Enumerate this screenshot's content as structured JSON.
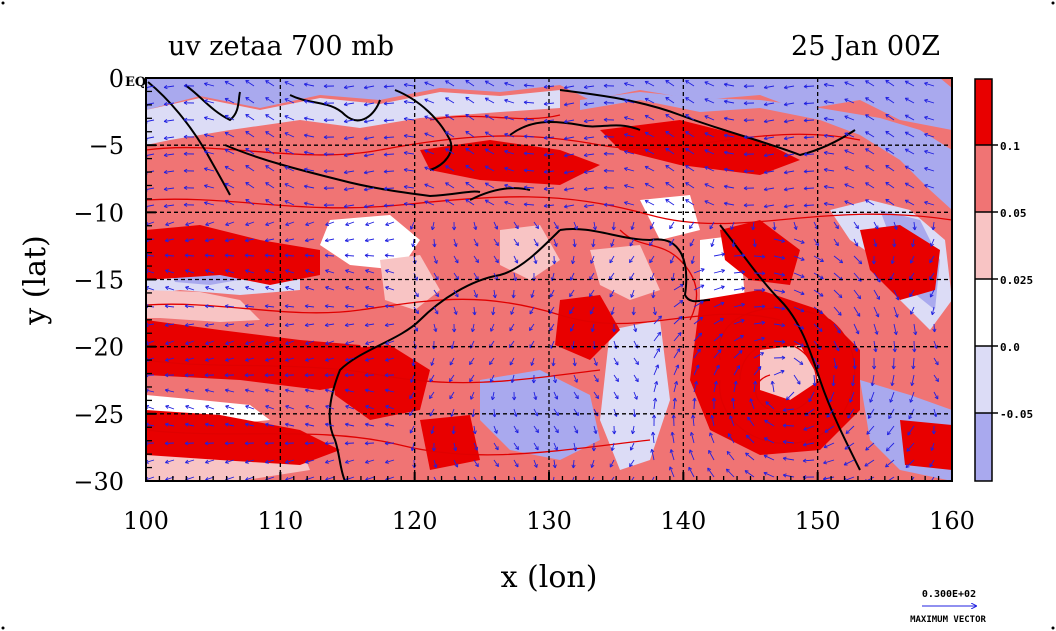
{
  "map": {
    "title_left": "uv zetaa 700 mb",
    "title_right": "25 Jan 00Z",
    "xlabel": "x (lon)",
    "ylabel": "y (lat)",
    "corner_label": "EQ",
    "lon_range": [
      100,
      160
    ],
    "lat_range": [
      -30,
      0
    ],
    "x_ticks": [
      {
        "value": 100,
        "label": "100"
      },
      {
        "value": 110,
        "label": "110"
      },
      {
        "value": 120,
        "label": "120"
      },
      {
        "value": 130,
        "label": "130"
      },
      {
        "value": 140,
        "label": "140"
      },
      {
        "value": 150,
        "label": "150"
      },
      {
        "value": 160,
        "label": "160"
      }
    ],
    "y_ticks": [
      {
        "value": 0,
        "label": "0"
      },
      {
        "value": -5,
        "label": "−5"
      },
      {
        "value": -10,
        "label": "−10"
      },
      {
        "value": -15,
        "label": "−15"
      },
      {
        "value": -20,
        "label": "−20"
      },
      {
        "value": -25,
        "label": "−25"
      },
      {
        "value": -30,
        "label": "−30"
      }
    ],
    "grid": true,
    "colors": {
      "strong_positive": "#e80000",
      "mid_positive": "#f07474",
      "weak_positive": "#f8c4c4",
      "neutral": "#ffffff",
      "weak_negative": "#dcdcf6",
      "negative": "#a9a9ee",
      "contour": "#e00000",
      "vector": "#2020e0",
      "coast": "#000000"
    }
  },
  "colorbar": {
    "labels": [
      {
        "value": 0.1,
        "label": "0.1"
      },
      {
        "value": 0.05,
        "label": "0.05"
      },
      {
        "value": 0.025,
        "label": "0.025"
      },
      {
        "value": 0.0,
        "label": "0.0"
      },
      {
        "value": -0.05,
        "label": "-0.05"
      }
    ]
  },
  "legend": {
    "max_vector_value": "0.300E+02",
    "max_vector_label": "MAXIMUM VECTOR"
  }
}
